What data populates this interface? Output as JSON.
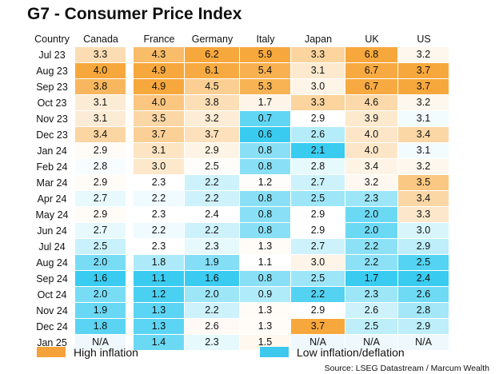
{
  "title": "G7 - Consumer Price Index",
  "source": "Source: LSEG Datastream / Marcum Wealth",
  "legend": {
    "high": {
      "label": "High inflation",
      "color": "#F5A23A"
    },
    "low": {
      "label": "Low inflation/deflation",
      "color": "#3EC8EE"
    }
  },
  "header": {
    "row_label": "Country"
  },
  "chart_data": {
    "type": "heatmap",
    "title": "G7 - Consumer Price Index",
    "columns": [
      "Canada",
      "France",
      "Germany",
      "Italy",
      "Japan",
      "UK",
      "US"
    ],
    "rows": [
      "Jul 23",
      "Aug 23",
      "Sep 23",
      "Oct 23",
      "Nov 23",
      "Dec 23",
      "Jan 24",
      "Feb 24",
      "Mar 24",
      "Apr 24",
      "May 24",
      "Jun 24",
      "Jul 24",
      "Aug 24",
      "Sep 24",
      "Oct 24",
      "Nov 24",
      "Dec 24",
      "Jan 25"
    ],
    "values": [
      [
        "3.3",
        "4.3",
        "6.2",
        "5.9",
        "3.3",
        "6.8",
        "3.2"
      ],
      [
        "4.0",
        "4.9",
        "6.1",
        "5.4",
        "3.1",
        "6.7",
        "3.7"
      ],
      [
        "3.8",
        "4.9",
        "4.5",
        "5.3",
        "3.0",
        "6.7",
        "3.7"
      ],
      [
        "3.1",
        "4.0",
        "3.8",
        "1.7",
        "3.3",
        "4.6",
        "3.2"
      ],
      [
        "3.1",
        "3.5",
        "3.2",
        "0.7",
        "2.9",
        "3.9",
        "3.1"
      ],
      [
        "3.4",
        "3.7",
        "3.7",
        "0.6",
        "2.6",
        "4.0",
        "3.4"
      ],
      [
        "2.9",
        "3.1",
        "2.9",
        "0.8",
        "2.1",
        "4.0",
        "3.1"
      ],
      [
        "2.8",
        "3.0",
        "2.5",
        "0.8",
        "2.8",
        "3.4",
        "3.2"
      ],
      [
        "2.9",
        "2.3",
        "2.2",
        "1.2",
        "2.7",
        "3.2",
        "3.5"
      ],
      [
        "2.7",
        "2.2",
        "2.2",
        "0.8",
        "2.5",
        "2.3",
        "3.4"
      ],
      [
        "2.9",
        "2.3",
        "2.4",
        "0.8",
        "2.9",
        "2.0",
        "3.3"
      ],
      [
        "2.7",
        "2.2",
        "2.2",
        "0.8",
        "2.9",
        "2.0",
        "3.0"
      ],
      [
        "2.5",
        "2.3",
        "2.3",
        "1.3",
        "2.7",
        "2.2",
        "2.9"
      ],
      [
        "2.0",
        "1.8",
        "1.9",
        "1.1",
        "3.0",
        "2.2",
        "2.5"
      ],
      [
        "1.6",
        "1.1",
        "1.6",
        "0.8",
        "2.5",
        "1.7",
        "2.4"
      ],
      [
        "2.0",
        "1.2",
        "2.0",
        "0.9",
        "2.2",
        "2.3",
        "2.6"
      ],
      [
        "1.9",
        "1.3",
        "2.2",
        "1.3",
        "2.9",
        "2.6",
        "2.8"
      ],
      [
        "1.8",
        "1.3",
        "2.6",
        "1.3",
        "3.7",
        "2.5",
        "2.9"
      ],
      [
        "N/A",
        "1.4",
        "2.3",
        "1.5",
        "N/A",
        "N/A",
        "N/A"
      ]
    ]
  }
}
